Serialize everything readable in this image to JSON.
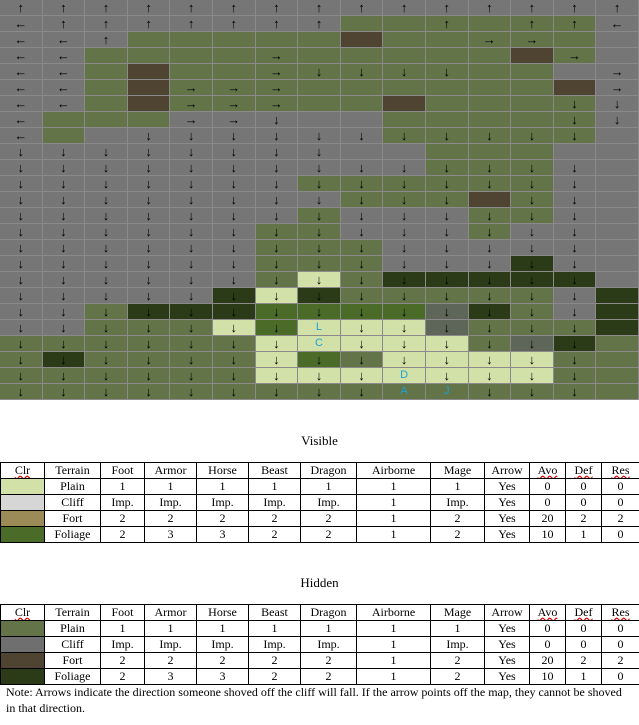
{
  "palette": {
    "g": "#767676",
    "p": "#627448",
    "f": "#4f4432",
    "d": "#2b3a17",
    "m": "#4b6b29",
    "l": "#d2e1a8",
    "w": "#5d6658"
  },
  "map": {
    "terrain": [
      "ggggggggggggggg",
      "ggggggggppppppg",
      "gggpppppfpppppg",
      "ggppppppppppfpg",
      "ggpfpppppppppgg",
      "ggpfpppppppppfg",
      "ggpfpppppfppppg",
      "gpppgggggpppppg",
      "gpgggggggpppppg",
      "ggggggggggpppgg",
      "ggggggggggpppgg",
      "gggggggppppppgg",
      "ggggggggpppfpgg",
      "gggggggpgggppgg",
      "ggggggppgggpggg",
      "ggggggpppgggggg",
      "ggggggpppgggdgg",
      "ggggggplpdddddg",
      "gggggdldpppppgd",
      "ggpdddmmmmwdpgd",
      "ggppplmlllwpppd",
      "pppppplllllpwdp",
      "pdpppplmpllllpp",
      "pppppplllllllpp",
      "ppppppppppppppp"
    ],
    "arrows": [
      "↑↑↑↑↑↑↑↑↑↑↑↑↑↑↑",
      "←↑↑↑↑↑↑↑  ↑ ↑↑←",
      "←←↑        →→ ",
      "←←    →      →",
      "←←    →↓↓↓↓   →",
      "←←  →→→       →",
      "←←  →→→      ↓↓",
      "←   →→↓      ↓↓",
      "←  ↓↓↓↓↓↓↓↓↓↓↓",
      "↓↓↓↓↓↓↓↓       ",
      "↓↓↓↓↓↓↓↓↓↓↓↓↓↓",
      "↓↓↓↓↓↓↓↓↓↓↓↓↓↓",
      "↓↓↓↓↓↓↓↓↓↓↓ ↓↓",
      "↓↓↓↓↓↓↓↓↓↓↓↓↓↓",
      "↓↓↓↓↓↓↓↓↓↓↓↓↓↓",
      "↓↓↓↓↓↓↓↓↓↓↓↓↓↓",
      "↓↓↓↓↓↓↓↓↓↓↓↓↓↓",
      "↓↓↓↓↓↓↓↓↓↓↓↓↓↓",
      "↓↓↓↓↓↓↓↓↓↓↓↓↓↓",
      "↓↓↓↓↓↓↓↓↓↓↓↓↓↓",
      "↓↓↓↓↓↓↓↓↓↓↓↓↓↓",
      "↓↓↓↓↓↓↓↓↓↓↓↓↓↓",
      "↓↓↓↓↓↓↓↓↓↓↓↓↓↓",
      "↓↓↓↓↓↓↓↓↓↓↓↓↓↓",
      "↓↓↓↓↓↓↓↓↓↓↓↓↓↓"
    ],
    "labels": [
      {
        "row": 20,
        "col": 7,
        "text": "L"
      },
      {
        "row": 21,
        "col": 7,
        "text": "C"
      },
      {
        "row": 23,
        "col": 9,
        "text": "D"
      },
      {
        "row": 24,
        "col": 9,
        "text": "A"
      },
      {
        "row": 24,
        "col": 10,
        "text": "J"
      }
    ]
  },
  "visible": {
    "caption": "Visible",
    "headers": [
      "Clr",
      "Terrain",
      "Foot",
      "Armor",
      "Horse",
      "Beast",
      "Dragon",
      "Airborne",
      "Mage",
      "Arrow",
      "Avo",
      "Def",
      "Res"
    ],
    "rows": [
      {
        "color": "#d2e1a8",
        "cells": [
          "Plain",
          "1",
          "1",
          "1",
          "1",
          "1",
          "1",
          "1",
          "Yes",
          "0",
          "0",
          "0"
        ]
      },
      {
        "color": "#d6d6d6",
        "cells": [
          "Cliff",
          "Imp.",
          "Imp.",
          "Imp.",
          "Imp.",
          "Imp.",
          "1",
          "Imp.",
          "Yes",
          "0",
          "0",
          "0"
        ]
      },
      {
        "color": "#9c8a57",
        "cells": [
          "Fort",
          "2",
          "2",
          "2",
          "2",
          "2",
          "1",
          "2",
          "Yes",
          "20",
          "2",
          "2"
        ]
      },
      {
        "color": "#4b6b29",
        "cells": [
          "Foliage",
          "2",
          "3",
          "3",
          "2",
          "2",
          "1",
          "2",
          "Yes",
          "10",
          "1",
          "0"
        ]
      }
    ]
  },
  "hidden": {
    "caption": "Hidden",
    "headers": [
      "Clr",
      "Terrain",
      "Foot",
      "Armor",
      "Horse",
      "Beast",
      "Dragon",
      "Airborne",
      "Mage",
      "Arrow",
      "Avo",
      "Def",
      "Res"
    ],
    "rows": [
      {
        "color": "#627448",
        "cells": [
          "Plain",
          "1",
          "1",
          "1",
          "1",
          "1",
          "1",
          "1",
          "Yes",
          "0",
          "0",
          "0"
        ]
      },
      {
        "color": "#6f6f6f",
        "cells": [
          "Cliff",
          "Imp.",
          "Imp.",
          "Imp.",
          "Imp.",
          "Imp.",
          "1",
          "Imp.",
          "Yes",
          "0",
          "0",
          "0"
        ]
      },
      {
        "color": "#4f4432",
        "cells": [
          "Fort",
          "2",
          "2",
          "2",
          "2",
          "2",
          "1",
          "2",
          "Yes",
          "20",
          "2",
          "2"
        ]
      },
      {
        "color": "#2b3a17",
        "cells": [
          "Foliage",
          "2",
          "3",
          "3",
          "2",
          "2",
          "1",
          "2",
          "Yes",
          "10",
          "1",
          "0"
        ]
      }
    ]
  },
  "note": "Note: Arrows indicate the direction someone shoved off the cliff will fall.  If the arrow points off the map, they cannot be shoved in that direction."
}
